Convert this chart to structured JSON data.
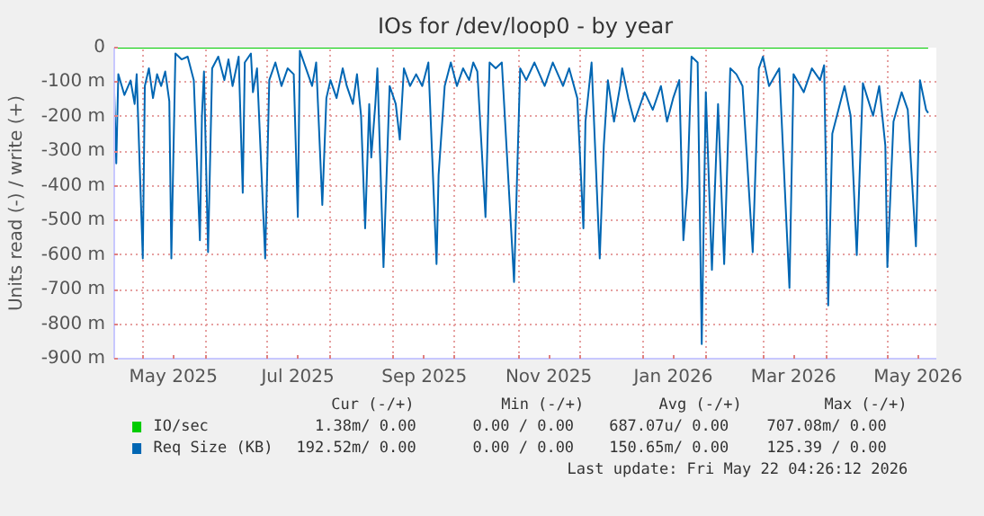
{
  "chart_data": {
    "type": "line",
    "title": "IOs for /dev/loop0 - by year",
    "ylabel": "Units read (-) / write (+)",
    "xlim": [
      "2025-04-17",
      "2026-05-25"
    ],
    "ylim": [
      -900,
      0
    ],
    "xticks": [
      {
        "value": "2025-05-01",
        "label": null
      },
      {
        "value": "2025-05-16",
        "label": "May 2025"
      },
      {
        "value": "2025-06-01",
        "label": null
      },
      {
        "value": "2025-07-01",
        "label": null
      },
      {
        "value": "2025-07-16",
        "label": "Jul 2025"
      },
      {
        "value": "2025-08-01",
        "label": null
      },
      {
        "value": "2025-09-01",
        "label": null
      },
      {
        "value": "2025-09-16",
        "label": "Sep 2025"
      },
      {
        "value": "2025-10-01",
        "label": null
      },
      {
        "value": "2025-11-01",
        "label": null
      },
      {
        "value": "2025-11-16",
        "label": "Nov 2025"
      },
      {
        "value": "2025-12-01",
        "label": null
      },
      {
        "value": "2026-01-01",
        "label": null
      },
      {
        "value": "2026-01-16",
        "label": "Jan 2026"
      },
      {
        "value": "2026-02-01",
        "label": null
      },
      {
        "value": "2026-03-01",
        "label": null
      },
      {
        "value": "2026-03-16",
        "label": "Mar 2026"
      },
      {
        "value": "2026-04-01",
        "label": null
      },
      {
        "value": "2026-05-01",
        "label": null
      },
      {
        "value": "2026-05-16",
        "label": "May 2026"
      }
    ],
    "yticks": [
      {
        "value": -900,
        "label": "-900 m"
      },
      {
        "value": -800,
        "label": "-800 m"
      },
      {
        "value": -700,
        "label": "-700 m"
      },
      {
        "value": -600,
        "label": "-600 m"
      },
      {
        "value": -500,
        "label": "-500 m"
      },
      {
        "value": -400,
        "label": "-400 m"
      },
      {
        "value": -300,
        "label": "-300 m"
      },
      {
        "value": -200,
        "label": "-200 m"
      },
      {
        "value": -100,
        "label": "-100 m"
      },
      0
    ],
    "grid": true,
    "legend": "bottom",
    "series": [
      {
        "name": "IO/sec",
        "color": "#00cc00",
        "x": [
          "2025-04-17",
          "2026-05-21"
        ],
        "values": [
          0,
          0
        ]
      },
      {
        "name": "Req Size (KB)",
        "color": "#0066b3",
        "x": [
          "2025-04-17",
          "2025-04-18",
          "2025-04-19",
          "2025-04-22",
          "2025-04-25",
          "2025-04-27",
          "2025-04-28",
          "2025-05-01",
          "2025-05-02",
          "2025-05-04",
          "2025-05-06",
          "2025-05-08",
          "2025-05-10",
          "2025-05-12",
          "2025-05-14",
          "2025-05-15",
          "2025-05-17",
          "2025-05-20",
          "2025-05-23",
          "2025-05-26",
          "2025-05-29",
          "2025-05-30",
          "2025-05-31",
          "2025-06-02",
          "2025-06-04",
          "2025-06-07",
          "2025-06-10",
          "2025-06-12",
          "2025-06-14",
          "2025-06-17",
          "2025-06-19",
          "2025-06-20",
          "2025-06-23",
          "2025-06-24",
          "2025-06-26",
          "2025-06-30",
          "2025-07-02",
          "2025-07-05",
          "2025-07-08",
          "2025-07-11",
          "2025-07-14",
          "2025-07-16",
          "2025-07-17",
          "2025-07-20",
          "2025-07-23",
          "2025-07-25",
          "2025-07-28",
          "2025-07-30",
          "2025-08-01",
          "2025-08-04",
          "2025-08-07",
          "2025-08-09",
          "2025-08-12",
          "2025-08-14",
          "2025-08-16",
          "2025-08-18",
          "2025-08-20",
          "2025-08-21",
          "2025-08-23",
          "2025-08-24",
          "2025-08-27",
          "2025-08-30",
          "2025-09-02",
          "2025-09-04",
          "2025-09-06",
          "2025-09-09",
          "2025-09-12",
          "2025-09-15",
          "2025-09-18",
          "2025-09-22",
          "2025-09-23",
          "2025-09-26",
          "2025-09-29",
          "2025-10-02",
          "2025-10-05",
          "2025-10-08",
          "2025-10-10",
          "2025-10-12",
          "2025-10-16",
          "2025-10-18",
          "2025-10-21",
          "2025-10-24",
          "2025-10-30",
          "2025-11-02",
          "2025-11-05",
          "2025-11-09",
          "2025-11-14",
          "2025-11-18",
          "2025-11-23",
          "2025-11-26",
          "2025-11-30",
          "2025-12-03",
          "2025-12-04",
          "2025-12-07",
          "2025-12-11",
          "2025-12-13",
          "2025-12-15",
          "2025-12-18",
          "2025-12-21",
          "2025-12-22",
          "2025-12-25",
          "2025-12-28",
          "2026-01-02",
          "2026-01-06",
          "2026-01-10",
          "2026-01-13",
          "2026-01-16",
          "2026-01-19",
          "2026-01-21",
          "2026-01-23",
          "2026-01-25",
          "2026-01-28",
          "2026-01-30",
          "2026-02-01",
          "2026-02-04",
          "2026-02-07",
          "2026-02-10",
          "2026-02-13",
          "2026-02-16",
          "2026-02-19",
          "2026-02-24",
          "2026-02-27",
          "2026-03-01",
          "2026-03-04",
          "2026-03-09",
          "2026-03-14",
          "2026-03-16",
          "2026-03-21",
          "2026-03-25",
          "2026-03-29",
          "2026-03-31",
          "2026-04-02",
          "2026-04-04",
          "2026-04-07",
          "2026-04-10",
          "2026-04-13",
          "2026-04-16",
          "2026-04-19",
          "2026-04-24",
          "2026-04-27",
          "2026-04-30",
          "2026-05-01",
          "2026-05-04",
          "2026-05-08",
          "2026-05-11",
          "2026-05-15",
          "2026-05-17",
          "2026-05-20",
          "2026-05-21"
        ],
        "values": [
          -130,
          -335,
          -77,
          -137,
          -95,
          -163,
          -77,
          -610,
          -111,
          -60,
          -146,
          -77,
          -111,
          -69,
          -155,
          -610,
          -17,
          -34,
          -26,
          -94,
          -557,
          -197,
          -69,
          -592,
          -60,
          -26,
          -94,
          -34,
          -111,
          -26,
          -420,
          -43,
          -17,
          -129,
          -60,
          -610,
          -94,
          -43,
          -111,
          -60,
          -77,
          -490,
          -9,
          -60,
          -111,
          -43,
          -455,
          -146,
          -94,
          -146,
          -60,
          -111,
          -163,
          -77,
          -197,
          -523,
          -163,
          -318,
          -163,
          -60,
          -635,
          -111,
          -163,
          -266,
          -60,
          -111,
          -77,
          -111,
          -43,
          -626,
          -369,
          -111,
          -43,
          -111,
          -60,
          -94,
          -43,
          -69,
          -490,
          -43,
          -60,
          -43,
          -678,
          -60,
          -94,
          -43,
          -111,
          -43,
          -111,
          -60,
          -146,
          -523,
          -214,
          -43,
          -610,
          -283,
          -94,
          -214,
          -111,
          -60,
          -146,
          -214,
          -129,
          -180,
          -111,
          -214,
          -146,
          -94,
          -557,
          -403,
          -26,
          -43,
          -858,
          -129,
          -643,
          -163,
          -626,
          -60,
          -77,
          -111,
          -592,
          -60,
          -26,
          -111,
          -60,
          -695,
          -77,
          -129,
          -60,
          -94,
          -51,
          -746,
          -249,
          -180,
          -111,
          -197,
          -600,
          -103,
          -197,
          -111,
          -283,
          -635,
          -214,
          -129,
          -180,
          -575,
          -94,
          -180,
          -189
        ]
      }
    ],
    "annotations": [
      "Cur (-/+)",
      "Min (-/+)",
      "Avg (-/+)",
      "Max (-/+)",
      "1.38m/  0.00",
      "0.00 /  0.00",
      "687.07u/  0.00",
      "707.08m/  0.00",
      "192.52m/  0.00",
      "0.00 /  0.00",
      "150.65m/  0.00",
      "125.39 /  0.00",
      "Last update: Fri May 22 04:26:12 2026"
    ]
  }
}
